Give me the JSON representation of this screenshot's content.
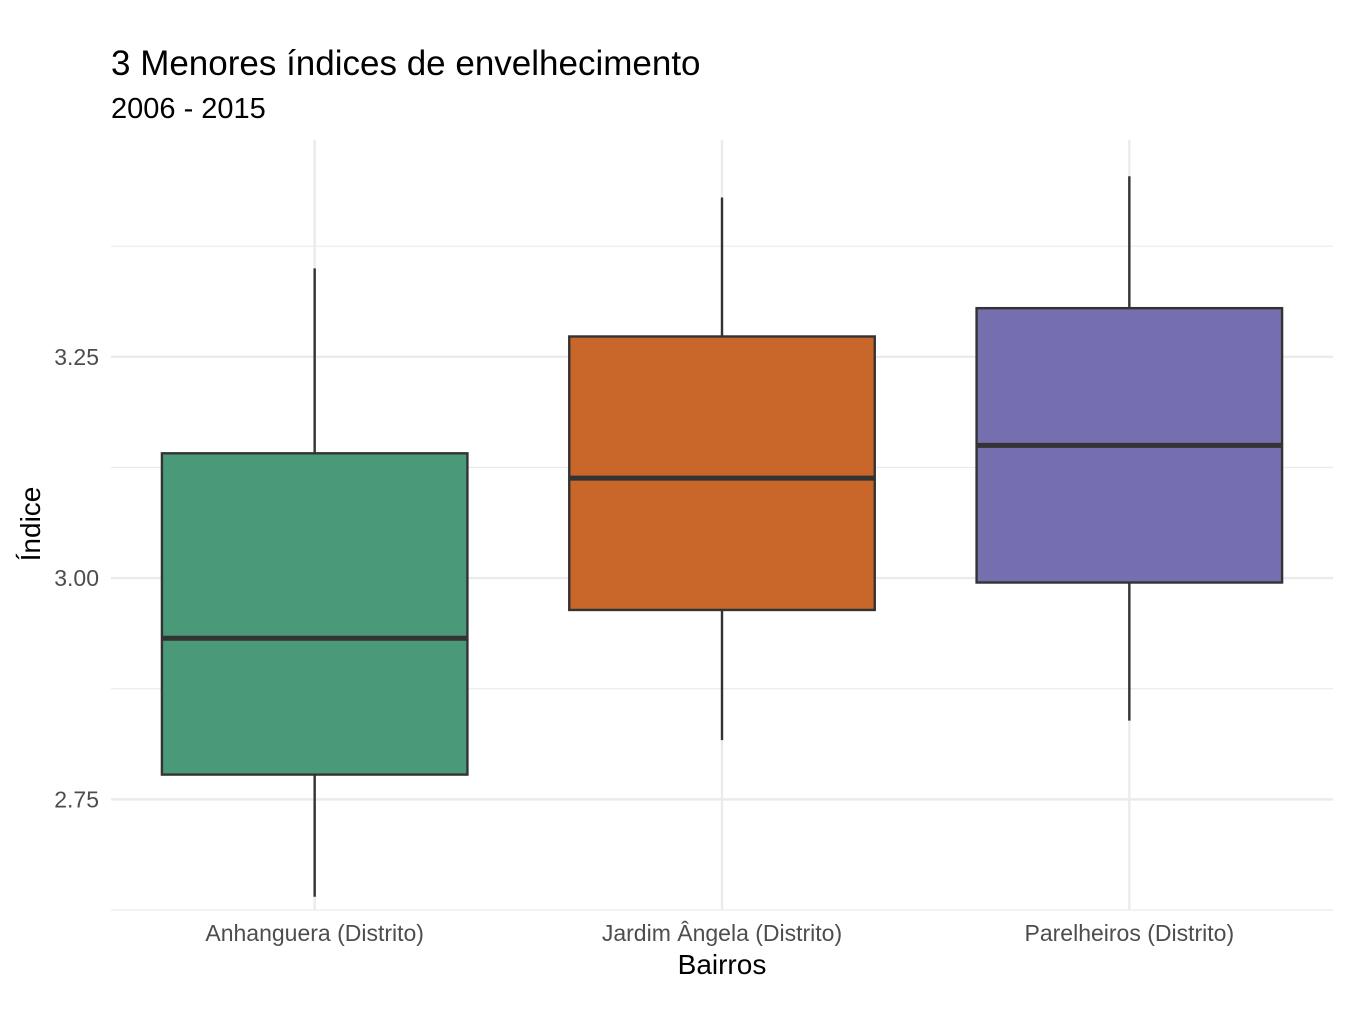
{
  "chart_data": {
    "type": "boxplot",
    "title": "3 Menores índices de envelhecimento",
    "subtitle": "2006 - 2015",
    "xlabel": "Bairros",
    "ylabel": "Índice",
    "ylim": [
      2.625,
      3.495
    ],
    "yticks": [
      2.75,
      3.0,
      3.25
    ],
    "ytick_labels": [
      "2.75",
      "3.00",
      "3.25"
    ],
    "categories": [
      "Anhanguera (Distrito)",
      "Jardim Ângela (Distrito)",
      "Parelheiros (Distrito)"
    ],
    "boxes": [
      {
        "category": "Anhanguera (Distrito)",
        "min": 2.64,
        "q1": 2.778,
        "median": 2.932,
        "q3": 3.141,
        "max": 3.35,
        "color": "#4a9a7a"
      },
      {
        "category": "Jardim Ângela (Distrito)",
        "min": 2.817,
        "q1": 2.964,
        "median": 3.113,
        "q3": 3.273,
        "max": 3.43,
        "color": "#c9662a"
      },
      {
        "category": "Parelheiros (Distrito)",
        "min": 2.839,
        "q1": 2.995,
        "median": 3.15,
        "q3": 3.305,
        "max": 3.454,
        "color": "#766faf"
      }
    ],
    "grid": true,
    "legend": "none"
  }
}
